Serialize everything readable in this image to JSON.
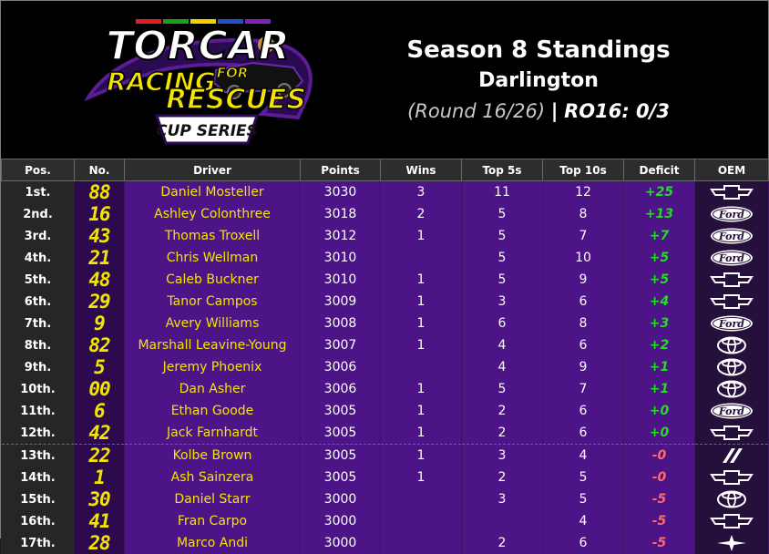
{
  "logo": {
    "line1": "TORCAR",
    "line2": "RACING",
    "line2b": "FOR",
    "line3": "RESCUES",
    "line4": "CUP SERIES"
  },
  "title": {
    "season": "Season 8 Standings",
    "track": "Darlington",
    "round": "(Round 16/26)",
    "separator": "|",
    "ro": "RO16: 0/3"
  },
  "columns": [
    "Pos.",
    "No.",
    "Driver",
    "Points",
    "Wins",
    "Top 5s",
    "Top 10s",
    "Deficit",
    "OEM"
  ],
  "rows": [
    {
      "pos": "1st.",
      "num": "88",
      "driver": "Daniel Mosteller",
      "points": "3030",
      "wins": "3",
      "top5": "11",
      "top10": "12",
      "deficit": "+25",
      "oem": "chevrolet"
    },
    {
      "pos": "2nd.",
      "num": "16",
      "driver": "Ashley Colonthree",
      "points": "3018",
      "wins": "2",
      "top5": "5",
      "top10": "8",
      "deficit": "+13",
      "oem": "ford"
    },
    {
      "pos": "3rd.",
      "num": "43",
      "driver": "Thomas Troxell",
      "points": "3012",
      "wins": "1",
      "top5": "5",
      "top10": "7",
      "deficit": "+7",
      "oem": "ford"
    },
    {
      "pos": "4th.",
      "num": "21",
      "driver": "Chris Wellman",
      "points": "3010",
      "wins": "",
      "top5": "5",
      "top10": "10",
      "deficit": "+5",
      "oem": "ford"
    },
    {
      "pos": "5th.",
      "num": "48",
      "driver": "Caleb Buckner",
      "points": "3010",
      "wins": "1",
      "top5": "5",
      "top10": "9",
      "deficit": "+5",
      "oem": "chevrolet"
    },
    {
      "pos": "6th.",
      "num": "29",
      "driver": "Tanor Campos",
      "points": "3009",
      "wins": "1",
      "top5": "3",
      "top10": "6",
      "deficit": "+4",
      "oem": "chevrolet"
    },
    {
      "pos": "7th.",
      "num": "9",
      "driver": "Avery Williams",
      "points": "3008",
      "wins": "1",
      "top5": "6",
      "top10": "8",
      "deficit": "+3",
      "oem": "ford"
    },
    {
      "pos": "8th.",
      "num": "82",
      "driver": "Marshall Leavine-Young",
      "points": "3007",
      "wins": "1",
      "top5": "4",
      "top10": "6",
      "deficit": "+2",
      "oem": "toyota"
    },
    {
      "pos": "9th.",
      "num": "5",
      "driver": "Jeremy Phoenix",
      "points": "3006",
      "wins": "",
      "top5": "4",
      "top10": "9",
      "deficit": "+1",
      "oem": "toyota"
    },
    {
      "pos": "10th.",
      "num": "00",
      "driver": "Dan Asher",
      "points": "3006",
      "wins": "1",
      "top5": "5",
      "top10": "7",
      "deficit": "+1",
      "oem": "toyota"
    },
    {
      "pos": "11th.",
      "num": "6",
      "driver": "Ethan Goode",
      "points": "3005",
      "wins": "1",
      "top5": "2",
      "top10": "6",
      "deficit": "+0",
      "oem": "ford"
    },
    {
      "pos": "12th.",
      "num": "42",
      "driver": "Jack Farnhardt",
      "points": "3005",
      "wins": "1",
      "top5": "2",
      "top10": "6",
      "deficit": "+0",
      "oem": "chevrolet"
    },
    {
      "pos": "13th.",
      "num": "22",
      "driver": "Kolbe Brown",
      "points": "3005",
      "wins": "1",
      "top5": "3",
      "top10": "4",
      "deficit": "-0",
      "oem": "dodge"
    },
    {
      "pos": "14th.",
      "num": "1",
      "driver": "Ash Sainzera",
      "points": "3005",
      "wins": "1",
      "top5": "2",
      "top10": "5",
      "deficit": "-0",
      "oem": "chevrolet"
    },
    {
      "pos": "15th.",
      "num": "30",
      "driver": "Daniel Starr",
      "points": "3000",
      "wins": "",
      "top5": "3",
      "top10": "5",
      "deficit": "-5",
      "oem": "toyota"
    },
    {
      "pos": "16th.",
      "num": "41",
      "driver": "Fran Carpo",
      "points": "3000",
      "wins": "",
      "top5": "",
      "top10": "4",
      "deficit": "-5",
      "oem": "chevrolet"
    },
    {
      "pos": "17th.",
      "num": "28",
      "driver": "Marco Andi",
      "points": "3000",
      "wins": "",
      "top5": "2",
      "top10": "6",
      "deficit": "-5",
      "oem": "star"
    }
  ],
  "cutline_after_row": 12,
  "colors": {
    "row_bg": "#4d1487",
    "number": "#f2e600",
    "driver": "#f4e400",
    "positive": "#22dd22",
    "negative": "#ff6b6b",
    "cutline": "#ff2a2a"
  }
}
